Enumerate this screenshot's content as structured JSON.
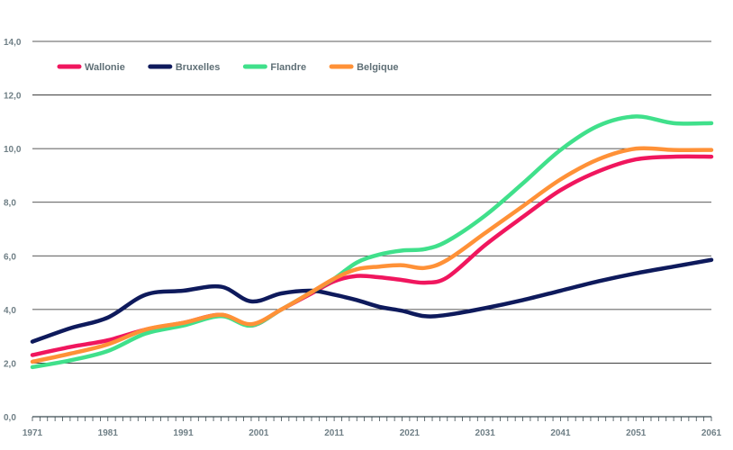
{
  "chart_data": {
    "type": "line",
    "title": "",
    "xlabel": "",
    "ylabel": "",
    "xlim": [
      1971,
      2061
    ],
    "ylim": [
      0,
      14
    ],
    "grid": true,
    "legend_position": "top-left",
    "y_ticks": [
      "0,0",
      "2,0",
      "4,0",
      "6,0",
      "8,0",
      "10,0",
      "12,0",
      "14,0"
    ],
    "x_ticks": [
      "1971",
      "1981",
      "1991",
      "2001",
      "2011",
      "2021",
      "2031",
      "2041",
      "2051",
      "2061"
    ],
    "x": [
      1971,
      1976,
      1981,
      1986,
      1991,
      1996,
      2000,
      2004,
      2008,
      2011,
      2014,
      2017,
      2020,
      2023,
      2026,
      2031,
      2036,
      2041,
      2046,
      2051,
      2056,
      2061
    ],
    "series": [
      {
        "name": "Wallonie",
        "color": "#f0165e",
        "values": [
          2.3,
          2.6,
          2.85,
          3.25,
          3.5,
          3.8,
          3.4,
          4.0,
          4.6,
          5.05,
          5.25,
          5.2,
          5.1,
          5.0,
          5.2,
          6.4,
          7.45,
          8.45,
          9.15,
          9.6,
          9.7,
          9.7
        ]
      },
      {
        "name": "Bruxelles",
        "color": "#0e1a5c",
        "values": [
          2.8,
          3.3,
          3.7,
          4.55,
          4.7,
          4.85,
          4.3,
          4.6,
          4.7,
          4.55,
          4.35,
          4.1,
          3.95,
          3.75,
          3.8,
          4.05,
          4.35,
          4.7,
          5.05,
          5.35,
          5.6,
          5.85
        ]
      },
      {
        "name": "Flandre",
        "color": "#40e08b",
        "values": [
          1.85,
          2.1,
          2.45,
          3.1,
          3.4,
          3.75,
          3.4,
          4.0,
          4.65,
          5.15,
          5.75,
          6.05,
          6.2,
          6.25,
          6.55,
          7.5,
          8.7,
          9.95,
          10.85,
          11.2,
          10.95,
          10.95
        ]
      },
      {
        "name": "Belgique",
        "color": "#ff9137",
        "values": [
          2.05,
          2.35,
          2.7,
          3.25,
          3.5,
          3.8,
          3.45,
          4.0,
          4.65,
          5.15,
          5.5,
          5.6,
          5.65,
          5.55,
          5.85,
          6.85,
          7.85,
          8.85,
          9.6,
          10.0,
          9.95,
          9.95
        ]
      }
    ]
  }
}
